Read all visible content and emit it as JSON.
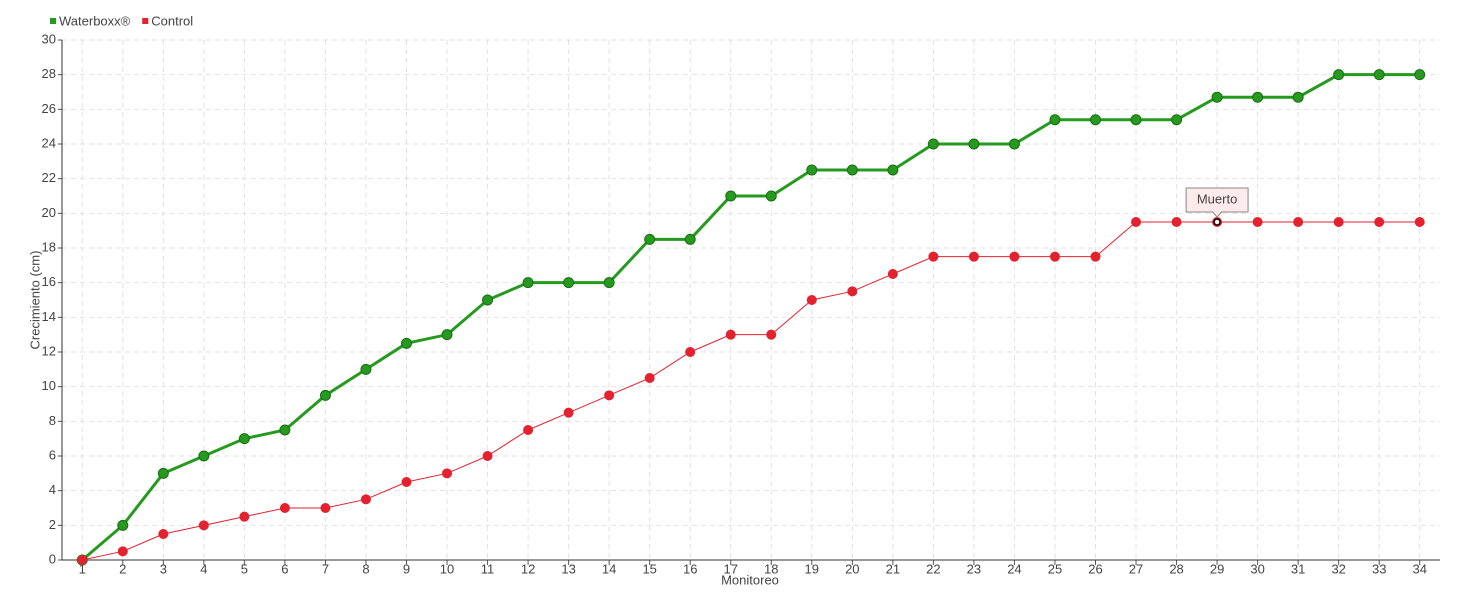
{
  "chart_data": {
    "type": "line",
    "x_label": "Monitoreo",
    "y_label": "Crecimiento (cm)",
    "categories": [
      "1",
      "2",
      "3",
      "4",
      "5",
      "6",
      "7",
      "8",
      "9",
      "10",
      "11",
      "12",
      "13",
      "14",
      "15",
      "16",
      "17",
      "18",
      "19",
      "20",
      "21",
      "22",
      "23",
      "24",
      "25",
      "26",
      "27",
      "28",
      "29",
      "30",
      "31",
      "32",
      "33",
      "34"
    ],
    "series": [
      {
        "name": "Waterboxx®",
        "color": "#259a1e",
        "values": [
          0,
          2,
          5,
          6,
          7,
          7.5,
          9.5,
          11,
          12.5,
          13,
          15,
          16,
          16,
          16,
          18.5,
          18.5,
          21,
          21,
          22.5,
          22.5,
          22.5,
          24,
          24,
          24,
          25.4,
          25.4,
          25.4,
          25.4,
          26.7,
          26.7,
          26.7,
          28,
          28,
          28
        ]
      },
      {
        "name": "Control",
        "color": "#e4222f",
        "values": [
          0,
          0.5,
          1.5,
          2,
          2.5,
          3,
          3,
          3.5,
          4.5,
          5,
          6,
          7.5,
          8.5,
          9.5,
          10.5,
          12,
          13,
          13,
          15,
          15.5,
          16.5,
          17.5,
          17.5,
          17.5,
          17.5,
          17.5,
          19.5,
          19.5,
          19.5,
          19.5,
          19.5,
          19.5,
          19.5,
          19.5
        ]
      }
    ],
    "annotations": [
      {
        "label": "Muerto",
        "x": "29"
      }
    ],
    "ylim": [
      0,
      30
    ],
    "yticks": [
      0,
      2,
      4,
      6,
      8,
      10,
      12,
      14,
      16,
      18,
      20,
      22,
      24,
      26,
      28,
      30
    ],
    "grid": true,
    "legend": "top-left"
  }
}
